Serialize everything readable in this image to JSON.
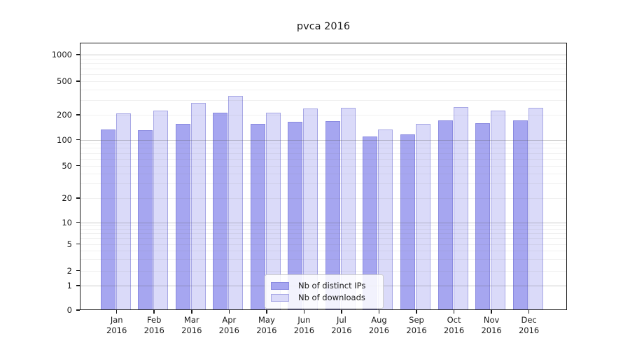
{
  "chart_data": {
    "type": "bar",
    "title": "pvca 2016",
    "categories": [
      "Jan 2016",
      "Feb 2016",
      "Mar 2016",
      "Apr 2016",
      "May 2016",
      "Jun 2016",
      "Jul 2016",
      "Aug 2016",
      "Sep 2016",
      "Oct 2016",
      "Nov 2016",
      "Dec 2016"
    ],
    "series": [
      {
        "name": "Nb of distinct IPs",
        "color": "#a6a6f0",
        "values": [
          133,
          130,
          155,
          212,
          155,
          163,
          168,
          110,
          115,
          170,
          158,
          170
        ]
      },
      {
        "name": "Nb of downloads",
        "color": "#dadaf9",
        "values": [
          208,
          224,
          276,
          338,
          211,
          238,
          243,
          133,
          155,
          248,
          224,
          241
        ]
      }
    ],
    "yscale": "symlog",
    "yticks": [
      0,
      1,
      2,
      5,
      10,
      20,
      50,
      100,
      200,
      500,
      1000
    ],
    "y_minor_gridlines": [
      3,
      4,
      6,
      7,
      8,
      9,
      30,
      40,
      60,
      70,
      80,
      90,
      300,
      400,
      600,
      700,
      800,
      900
    ],
    "y_decade_gridlines": [
      1,
      10,
      100,
      1000
    ],
    "y_sub_gridlines": [
      2,
      5,
      20,
      50,
      200,
      500
    ],
    "ylim_top_approx": 1380,
    "xlabel": "",
    "ylabel": "",
    "legend_position": "lower center",
    "grid": "horizontal, major decades darker + log minors faint",
    "colors": {
      "axis": "#1a1a1a",
      "grid_major": "#b5b5b5",
      "grid_minor": "#e8e8e8",
      "legend_border": "#cccccc"
    }
  }
}
